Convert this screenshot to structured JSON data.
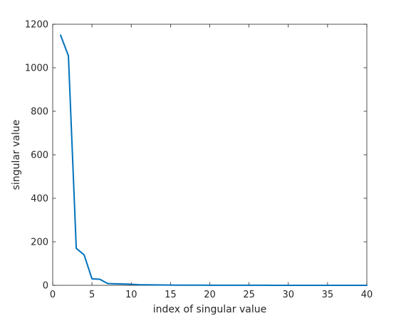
{
  "chart_data": {
    "type": "line",
    "title": "",
    "xlabel": "index of singular value",
    "ylabel": "singular value",
    "xlim": [
      0,
      40
    ],
    "ylim": [
      0,
      1200
    ],
    "xticks": [
      0,
      5,
      10,
      15,
      20,
      25,
      30,
      35,
      40
    ],
    "yticks": [
      0,
      200,
      400,
      600,
      800,
      1000,
      1200
    ],
    "grid": false,
    "legend": "none",
    "series": [
      {
        "color": "#0072BD",
        "x": [
          1,
          2,
          3,
          4,
          5,
          6,
          7,
          8,
          9,
          10,
          11,
          12,
          13,
          14,
          15,
          16,
          17,
          18,
          19,
          20,
          21,
          22,
          23,
          24,
          25,
          26,
          27,
          28,
          29,
          30,
          31,
          32,
          33,
          34,
          35,
          36,
          37,
          38,
          39,
          40
        ],
        "y": [
          1150,
          1055,
          170,
          140,
          30,
          28,
          8,
          7,
          6,
          5,
          3,
          2.5,
          2,
          1.5,
          1.2,
          1,
          0.9,
          0.8,
          0.7,
          0.6,
          0.5,
          0.5,
          0.4,
          0.4,
          0.3,
          0.3,
          0.3,
          0.2,
          0.2,
          0.2,
          0.2,
          0.1,
          0.1,
          0.1,
          0.1,
          0.1,
          0.1,
          0.1,
          0.1,
          0.1
        ]
      }
    ]
  }
}
